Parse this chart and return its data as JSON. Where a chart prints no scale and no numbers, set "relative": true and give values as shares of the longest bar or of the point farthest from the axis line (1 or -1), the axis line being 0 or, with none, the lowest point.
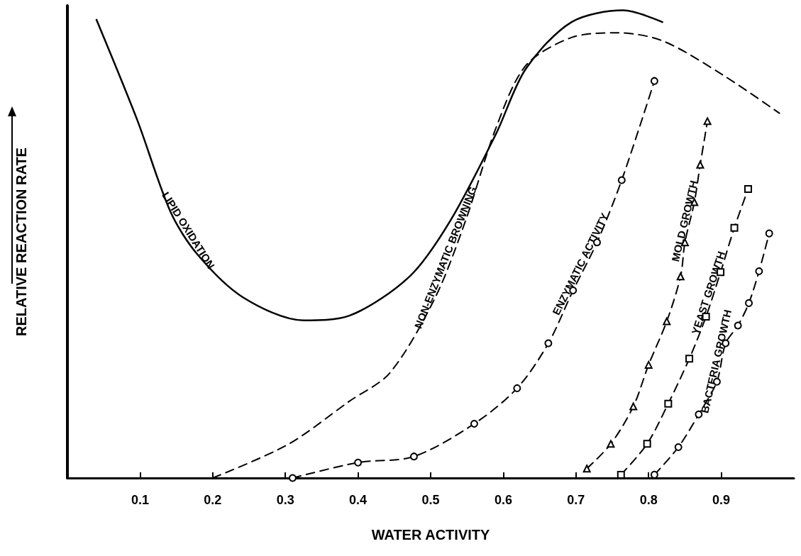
{
  "chart_data": {
    "type": "line",
    "xlabel": "WATER ACTIVITY",
    "ylabel": "RELATIVE REACTION RATE",
    "relative": true,
    "tick_labels": "x",
    "xlim": [
      0,
      1
    ],
    "xticks": [
      0.1,
      0.2,
      0.3,
      0.4,
      0.5,
      0.6,
      0.7,
      0.8,
      0.9
    ],
    "series": [
      {
        "name": "LIPID OXIDATION",
        "color": "#000000",
        "line_style": "solid",
        "marker": "none",
        "x": [
          0.04,
          0.096,
          0.142,
          0.179,
          0.242,
          0.325,
          0.388,
          0.471,
          0.527,
          0.59,
          0.631,
          0.694,
          0.765,
          0.819
        ],
        "values": [
          0.98,
          0.766,
          0.569,
          0.478,
          0.386,
          0.337,
          0.347,
          0.431,
          0.55,
          0.736,
          0.875,
          0.975,
          1.0,
          0.975
        ]
      },
      {
        "name": "NON-ENZYMATIC BROWNING",
        "color": "#000000",
        "line_style": "dashed",
        "marker": "none",
        "x": [
          0.2,
          0.304,
          0.388,
          0.444,
          0.506,
          0.548,
          0.59,
          0.631,
          0.694,
          0.756,
          0.819,
          0.902,
          0.98
        ],
        "values": [
          0,
          0.072,
          0.164,
          0.225,
          0.385,
          0.55,
          0.749,
          0.882,
          0.942,
          0.952,
          0.935,
          0.862,
          0.78
        ]
      },
      {
        "name": "ENZYMATIC ACTIVITY",
        "color": "#000000",
        "line_style": "dashed",
        "marker": "circle",
        "x": [
          0.31,
          0.4,
          0.477,
          0.56,
          0.619,
          0.662,
          0.696,
          0.729,
          0.763,
          0.808
        ],
        "values": [
          0,
          0.033,
          0.046,
          0.116,
          0.192,
          0.288,
          0.401,
          0.504,
          0.637,
          0.849
        ]
      },
      {
        "name": "MOLD GROWTH",
        "color": "#000000",
        "line_style": "dashed",
        "marker": "triangle",
        "x": [
          0.715,
          0.748,
          0.779,
          0.8,
          0.825,
          0.844,
          0.85,
          0.863,
          0.871,
          0.881
        ],
        "values": [
          0.02,
          0.073,
          0.153,
          0.242,
          0.335,
          0.431,
          0.504,
          0.59,
          0.67,
          0.763
        ]
      },
      {
        "name": "YEAST GROWTH",
        "color": "#000000",
        "line_style": "dashed",
        "marker": "square",
        "x": [
          0.762,
          0.798,
          0.827,
          0.856,
          0.879,
          0.899,
          0.918,
          0.937
        ],
        "values": [
          0.007,
          0.073,
          0.159,
          0.255,
          0.345,
          0.44,
          0.535,
          0.618
        ]
      },
      {
        "name": "BACTERIA GROWTH",
        "color": "#000000",
        "line_style": "dashed",
        "marker": "circle",
        "x": [
          0.808,
          0.841,
          0.869,
          0.894,
          0.906,
          0.923,
          0.938,
          0.952,
          0.966
        ],
        "values": [
          0.007,
          0.066,
          0.136,
          0.206,
          0.288,
          0.326,
          0.374,
          0.442,
          0.523
        ]
      }
    ]
  }
}
